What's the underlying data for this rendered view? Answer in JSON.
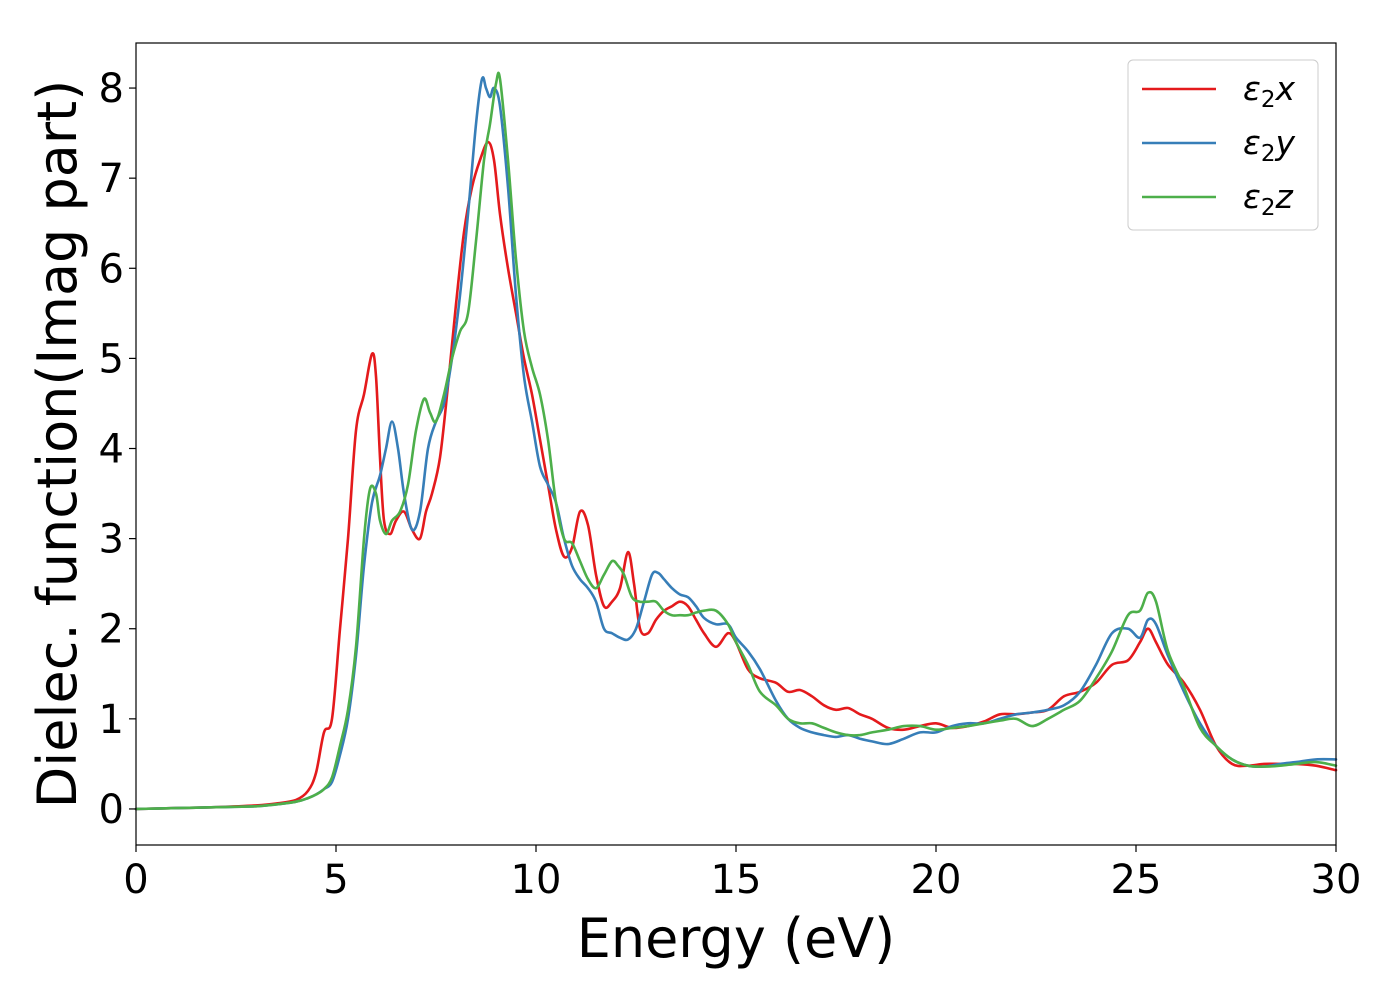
{
  "chart_data": {
    "type": "line",
    "title": "",
    "xlabel": "Energy (eV)",
    "ylabel": "Dielec. function(Imag part)",
    "xlim": [
      0,
      30
    ],
    "ylim": [
      -0.4,
      8.5
    ],
    "xticks": [
      0,
      5,
      10,
      15,
      20,
      25,
      30
    ],
    "yticks": [
      0,
      1,
      2,
      3,
      4,
      5,
      6,
      7,
      8
    ],
    "grid": false,
    "legend_position": "top-right",
    "series": [
      {
        "name": "ε₂x",
        "legend_main": "ε",
        "legend_sub": "2",
        "legend_suffix": "x",
        "color": "#e41a1c",
        "x": [
          0,
          1,
          2,
          3,
          3.5,
          4,
          4.3,
          4.5,
          4.7,
          4.9,
          5.1,
          5.3,
          5.5,
          5.7,
          5.9,
          6.0,
          6.1,
          6.2,
          6.35,
          6.5,
          6.7,
          6.9,
          7.1,
          7.25,
          7.4,
          7.6,
          7.8,
          8.0,
          8.2,
          8.4,
          8.6,
          8.8,
          8.95,
          9.1,
          9.3,
          9.5,
          9.7,
          9.9,
          10.1,
          10.3,
          10.5,
          10.7,
          10.9,
          11.1,
          11.3,
          11.5,
          11.7,
          11.9,
          12.1,
          12.3,
          12.45,
          12.6,
          12.8,
          13.0,
          13.2,
          13.4,
          13.6,
          13.8,
          14.0,
          14.2,
          14.5,
          14.8,
          15.0,
          15.3,
          15.6,
          16.0,
          16.3,
          16.6,
          16.9,
          17.2,
          17.5,
          17.8,
          18.1,
          18.4,
          18.8,
          19.2,
          19.6,
          20.0,
          20.4,
          20.8,
          21.2,
          21.6,
          22.0,
          22.4,
          22.8,
          23.2,
          23.6,
          24.0,
          24.4,
          24.8,
          25.1,
          25.3,
          25.5,
          25.8,
          26.2,
          26.6,
          27.0,
          27.4,
          27.8,
          28.2,
          28.6,
          29.0,
          29.5,
          30.0
        ],
        "values": [
          0.0,
          0.01,
          0.02,
          0.04,
          0.06,
          0.1,
          0.2,
          0.4,
          0.85,
          1.0,
          2.0,
          3.0,
          4.2,
          4.6,
          5.05,
          4.8,
          3.9,
          3.2,
          3.05,
          3.2,
          3.3,
          3.1,
          3.0,
          3.3,
          3.5,
          3.9,
          4.7,
          5.6,
          6.4,
          6.9,
          7.2,
          7.4,
          7.2,
          6.6,
          6.0,
          5.5,
          5.0,
          4.6,
          4.1,
          3.6,
          3.1,
          2.8,
          2.9,
          3.3,
          3.15,
          2.6,
          2.25,
          2.3,
          2.45,
          2.85,
          2.5,
          2.0,
          1.95,
          2.1,
          2.2,
          2.25,
          2.3,
          2.25,
          2.1,
          1.95,
          1.8,
          1.95,
          1.85,
          1.55,
          1.45,
          1.4,
          1.3,
          1.32,
          1.25,
          1.15,
          1.1,
          1.12,
          1.05,
          1.0,
          0.9,
          0.88,
          0.92,
          0.95,
          0.9,
          0.92,
          0.97,
          1.05,
          1.05,
          1.07,
          1.1,
          1.25,
          1.3,
          1.4,
          1.6,
          1.65,
          1.85,
          2.0,
          1.85,
          1.6,
          1.4,
          1.1,
          0.7,
          0.5,
          0.48,
          0.5,
          0.5,
          0.5,
          0.48,
          0.43
        ]
      },
      {
        "name": "ε₂y",
        "legend_main": "ε",
        "legend_sub": "2",
        "legend_suffix": "y",
        "color": "#377eb8",
        "x": [
          0,
          1,
          2,
          3,
          3.5,
          4,
          4.3,
          4.5,
          4.7,
          4.9,
          5.1,
          5.3,
          5.5,
          5.7,
          5.9,
          6.1,
          6.25,
          6.4,
          6.55,
          6.7,
          6.9,
          7.1,
          7.3,
          7.5,
          7.7,
          7.9,
          8.1,
          8.3,
          8.5,
          8.65,
          8.75,
          8.85,
          8.95,
          9.1,
          9.3,
          9.5,
          9.7,
          9.9,
          10.1,
          10.3,
          10.5,
          10.7,
          10.9,
          11.1,
          11.3,
          11.5,
          11.7,
          11.9,
          12.1,
          12.3,
          12.5,
          12.7,
          12.9,
          13.05,
          13.2,
          13.4,
          13.6,
          13.8,
          14.0,
          14.2,
          14.5,
          14.8,
          15.0,
          15.3,
          15.6,
          16.0,
          16.3,
          16.6,
          16.9,
          17.2,
          17.5,
          17.8,
          18.1,
          18.4,
          18.8,
          19.2,
          19.6,
          20.0,
          20.4,
          20.8,
          21.2,
          21.6,
          22.0,
          22.4,
          22.8,
          23.2,
          23.6,
          24.0,
          24.4,
          24.8,
          25.1,
          25.3,
          25.5,
          25.8,
          26.2,
          26.6,
          27.0,
          27.4,
          27.8,
          28.2,
          28.6,
          29.0,
          29.5,
          30.0
        ],
        "values": [
          0.0,
          0.01,
          0.02,
          0.03,
          0.05,
          0.08,
          0.12,
          0.16,
          0.22,
          0.3,
          0.6,
          1.0,
          1.7,
          2.7,
          3.4,
          3.7,
          4.0,
          4.3,
          4.0,
          3.5,
          3.1,
          3.3,
          4.0,
          4.3,
          4.5,
          5.0,
          5.7,
          6.6,
          7.6,
          8.1,
          8.0,
          7.9,
          8.0,
          7.8,
          6.9,
          5.7,
          4.8,
          4.3,
          3.8,
          3.6,
          3.4,
          3.0,
          2.7,
          2.55,
          2.45,
          2.3,
          2.0,
          1.95,
          1.9,
          1.88,
          2.0,
          2.3,
          2.6,
          2.62,
          2.55,
          2.45,
          2.38,
          2.35,
          2.25,
          2.12,
          2.05,
          2.05,
          1.9,
          1.75,
          1.55,
          1.2,
          1.0,
          0.9,
          0.85,
          0.82,
          0.8,
          0.82,
          0.78,
          0.75,
          0.72,
          0.78,
          0.85,
          0.85,
          0.92,
          0.95,
          0.95,
          1.0,
          1.05,
          1.07,
          1.1,
          1.15,
          1.3,
          1.6,
          1.95,
          2.0,
          1.9,
          2.1,
          2.05,
          1.7,
          1.3,
          0.95,
          0.7,
          0.55,
          0.48,
          0.47,
          0.5,
          0.52,
          0.55,
          0.55
        ]
      },
      {
        "name": "ε₂z",
        "legend_main": "ε",
        "legend_sub": "2",
        "legend_suffix": "z",
        "color": "#4daf4a",
        "x": [
          0,
          1,
          2,
          3,
          3.5,
          4,
          4.3,
          4.5,
          4.7,
          4.9,
          5.1,
          5.3,
          5.5,
          5.7,
          5.85,
          6.0,
          6.1,
          6.25,
          6.4,
          6.6,
          6.8,
          7.0,
          7.2,
          7.35,
          7.5,
          7.7,
          7.9,
          8.1,
          8.3,
          8.5,
          8.7,
          8.85,
          9.0,
          9.1,
          9.3,
          9.5,
          9.7,
          9.9,
          10.1,
          10.3,
          10.5,
          10.7,
          10.9,
          11.1,
          11.3,
          11.5,
          11.7,
          11.9,
          12.05,
          12.2,
          12.4,
          12.6,
          12.8,
          13.0,
          13.2,
          13.4,
          13.6,
          13.8,
          14.0,
          14.2,
          14.5,
          14.8,
          15.0,
          15.3,
          15.6,
          16.0,
          16.3,
          16.6,
          16.9,
          17.2,
          17.5,
          17.8,
          18.1,
          18.4,
          18.8,
          19.2,
          19.6,
          20.0,
          20.4,
          20.8,
          21.2,
          21.6,
          22.0,
          22.4,
          22.8,
          23.2,
          23.6,
          24.0,
          24.4,
          24.8,
          25.1,
          25.3,
          25.5,
          25.8,
          26.2,
          26.6,
          27.0,
          27.4,
          27.8,
          28.2,
          28.6,
          29.0,
          29.5,
          30.0
        ],
        "values": [
          0.0,
          0.01,
          0.02,
          0.03,
          0.05,
          0.08,
          0.12,
          0.16,
          0.22,
          0.35,
          0.7,
          1.1,
          1.8,
          3.0,
          3.55,
          3.5,
          3.2,
          3.05,
          3.2,
          3.3,
          3.6,
          4.2,
          4.55,
          4.4,
          4.3,
          4.6,
          5.0,
          5.3,
          5.5,
          6.3,
          7.2,
          7.6,
          8.05,
          8.1,
          7.2,
          6.1,
          5.3,
          4.9,
          4.6,
          4.1,
          3.4,
          3.0,
          2.95,
          2.75,
          2.55,
          2.45,
          2.6,
          2.75,
          2.7,
          2.6,
          2.35,
          2.3,
          2.3,
          2.3,
          2.2,
          2.15,
          2.15,
          2.15,
          2.18,
          2.2,
          2.2,
          2.05,
          1.85,
          1.6,
          1.3,
          1.15,
          1.0,
          0.95,
          0.95,
          0.9,
          0.85,
          0.82,
          0.82,
          0.85,
          0.88,
          0.92,
          0.92,
          0.88,
          0.9,
          0.92,
          0.95,
          0.98,
          1.0,
          0.92,
          1.0,
          1.1,
          1.2,
          1.45,
          1.75,
          2.15,
          2.2,
          2.4,
          2.3,
          1.75,
          1.35,
          0.9,
          0.7,
          0.55,
          0.48,
          0.47,
          0.48,
          0.5,
          0.52,
          0.48
        ]
      }
    ]
  }
}
